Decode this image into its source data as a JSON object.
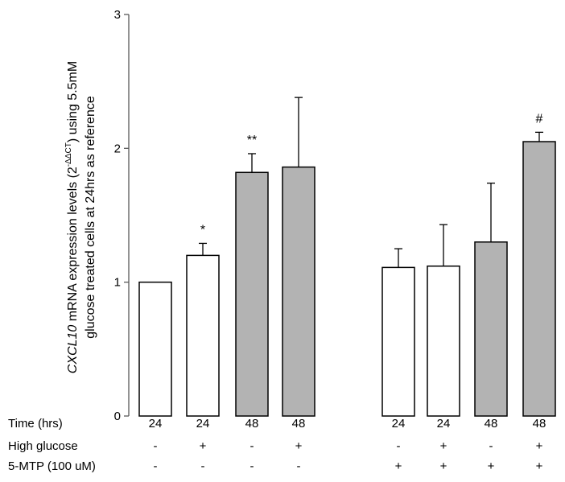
{
  "chart_data": {
    "type": "bar",
    "ylim": [
      0,
      3
    ],
    "y_ticks": [
      "0",
      "1",
      "2",
      "3"
    ],
    "ylabel": {
      "line1_italic": "CXCL10",
      "line1_text": " mRNA expression levels (2",
      "line1_sup": "-ΔΔCT",
      "line1_end": ") using 5.5mM",
      "line2": "glucose treated cells at 24hrs as reference"
    },
    "colors": {
      "white_fill": "#ffffff",
      "grey_fill": "#b3b3b3",
      "edge": "#000000"
    },
    "bars": [
      {
        "value": 1.0,
        "error": 0.0,
        "fill": "white",
        "sig": ""
      },
      {
        "value": 1.2,
        "error": 0.09,
        "fill": "white",
        "sig": "*"
      },
      {
        "value": 1.82,
        "error": 0.14,
        "fill": "grey",
        "sig": "**"
      },
      {
        "value": 1.86,
        "error": 0.52,
        "fill": "grey",
        "sig": ""
      },
      {
        "value": 1.11,
        "error": 0.14,
        "fill": "white",
        "sig": ""
      },
      {
        "value": 1.12,
        "error": 0.31,
        "fill": "white",
        "sig": ""
      },
      {
        "value": 1.3,
        "error": 0.44,
        "fill": "grey",
        "sig": ""
      },
      {
        "value": 2.05,
        "error": 0.07,
        "fill": "grey",
        "sig": "#"
      }
    ],
    "table_rows": [
      {
        "label": "Time (hrs)",
        "cells": [
          "24",
          "24",
          "48",
          "48",
          "24",
          "24",
          "48",
          "48"
        ]
      },
      {
        "label": "High glucose",
        "cells": [
          "-",
          "+",
          "-",
          "+",
          "-",
          "+",
          "-",
          "+"
        ]
      },
      {
        "label": "5-MTP (100 uM)",
        "cells": [
          "-",
          "-",
          "-",
          "-",
          "+",
          "+",
          "+",
          "+"
        ]
      }
    ]
  }
}
